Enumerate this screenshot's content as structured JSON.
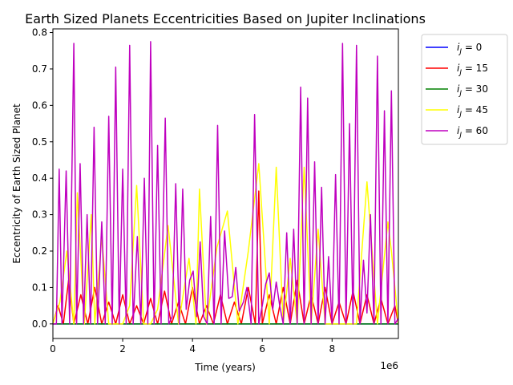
{
  "chart_data": {
    "type": "line",
    "title": "Earth Sized Planets Eccentricities Based on Jupiter Inclinations",
    "xlabel": "Time (years)",
    "ylabel": "Eccentricity of Earth Sized Planet",
    "x_offset_label": "1e6",
    "xlim": [
      0,
      9900000
    ],
    "ylim": [
      -0.04,
      0.81
    ],
    "x_ticks": [
      0,
      2000000,
      4000000,
      6000000,
      8000000
    ],
    "x_tick_labels": [
      "0",
      "2",
      "4",
      "6",
      "8"
    ],
    "y_ticks": [
      0.0,
      0.1,
      0.2,
      0.3,
      0.4,
      0.5,
      0.6,
      0.7,
      0.8
    ],
    "y_tick_labels": [
      "0.0",
      "0.1",
      "0.2",
      "0.3",
      "0.4",
      "0.5",
      "0.6",
      "0.7",
      "0.8"
    ],
    "grid": false,
    "legend_position": "outside-right",
    "series": [
      {
        "name": "$i_J$ = 0",
        "legend_var": "i",
        "legend_sub": "J",
        "legend_rest": " = 0",
        "color": "#0000ff",
        "x": [
          0,
          9900000
        ],
        "y": [
          0.0,
          0.0
        ]
      },
      {
        "name": "$i_J$ = 15",
        "legend_var": "i",
        "legend_sub": "J",
        "legend_rest": " = 15",
        "color": "#ff0000",
        "x": [
          0,
          150000,
          300000,
          450000,
          600000,
          800000,
          1000000,
          1200000,
          1400000,
          1600000,
          1800000,
          2000000,
          2200000,
          2400000,
          2600000,
          2800000,
          3000000,
          3200000,
          3400000,
          3600000,
          3800000,
          4000000,
          4200000,
          4400000,
          4600000,
          4800000,
          5000000,
          5200000,
          5400000,
          5600000,
          5800000,
          5900000,
          6000000,
          6200000,
          6400000,
          6600000,
          6800000,
          7000000,
          7200000,
          7400000,
          7600000,
          7800000,
          8000000,
          8200000,
          8400000,
          8600000,
          8800000,
          9000000,
          9200000,
          9400000,
          9600000,
          9800000,
          9900000
        ],
        "y": [
          0.0,
          0.05,
          0.0,
          0.12,
          0.0,
          0.08,
          0.0,
          0.1,
          0.0,
          0.06,
          0.0,
          0.08,
          0.0,
          0.05,
          0.0,
          0.07,
          0.0,
          0.09,
          0.0,
          0.06,
          0.0,
          0.1,
          0.0,
          0.05,
          0.0,
          0.08,
          0.0,
          0.06,
          0.0,
          0.1,
          0.0,
          0.365,
          0.0,
          0.08,
          0.0,
          0.1,
          0.0,
          0.12,
          0.0,
          0.08,
          0.0,
          0.1,
          0.0,
          0.06,
          0.0,
          0.09,
          0.0,
          0.08,
          0.0,
          0.07,
          0.0,
          0.05,
          0.0
        ]
      },
      {
        "name": "$i_J$ = 30",
        "legend_var": "i",
        "legend_sub": "J",
        "legend_rest": " = 30",
        "color": "#008000",
        "x": [
          0,
          9900000
        ],
        "y": [
          0.0,
          0.0
        ]
      },
      {
        "name": "$i_J$ = 45",
        "legend_var": "i",
        "legend_sub": "J",
        "legend_rest": " = 45",
        "color": "#ffff00",
        "x": [
          0,
          200000,
          400000,
          600000,
          700000,
          900000,
          1100000,
          1200000,
          1400000,
          1600000,
          1800000,
          2000000,
          2200000,
          2400000,
          2600000,
          2800000,
          3000000,
          3300000,
          3600000,
          3900000,
          4100000,
          4200000,
          4400000,
          4700000,
          5000000,
          5300000,
          5600000,
          5900000,
          6200000,
          6400000,
          6600000,
          6800000,
          7000000,
          7200000,
          7400000,
          7600000,
          7800000,
          8100000,
          8400000,
          8700000,
          9000000,
          9300000,
          9600000,
          9700000,
          9900000
        ],
        "y": [
          0.0,
          0.06,
          0.2,
          0.0,
          0.36,
          0.0,
          0.3,
          0.0,
          0.24,
          0.0,
          0.0,
          0.0,
          0.05,
          0.38,
          0.0,
          0.0,
          0.04,
          0.27,
          0.0,
          0.18,
          0.0,
          0.37,
          0.0,
          0.21,
          0.31,
          0.0,
          0.2,
          0.44,
          0.0,
          0.43,
          0.0,
          0.18,
          0.0,
          0.43,
          0.0,
          0.26,
          0.0,
          0.0,
          0.0,
          0.0,
          0.39,
          0.0,
          0.28,
          0.2,
          0.0
        ]
      },
      {
        "name": "$i_J$ = 60",
        "legend_var": "i",
        "legend_sub": "J",
        "legend_rest": " = 60",
        "color": "#bf00bf",
        "x": [
          0,
          100000,
          180000,
          260000,
          380000,
          480000,
          600000,
          680000,
          780000,
          880000,
          980000,
          1080000,
          1180000,
          1280000,
          1400000,
          1500000,
          1600000,
          1700000,
          1800000,
          1900000,
          2000000,
          2100000,
          2200000,
          2300000,
          2420000,
          2520000,
          2620000,
          2720000,
          2800000,
          2900000,
          3000000,
          3100000,
          3220000,
          3320000,
          3420000,
          3520000,
          3620000,
          3720000,
          3820000,
          3920000,
          4020000,
          4120000,
          4220000,
          4320000,
          4420000,
          4520000,
          4620000,
          4720000,
          4820000,
          4920000,
          5040000,
          5140000,
          5240000,
          5340000,
          5460000,
          5560000,
          5680000,
          5780000,
          5900000,
          6000000,
          6100000,
          6200000,
          6300000,
          6400000,
          6500000,
          6600000,
          6700000,
          6800000,
          6900000,
          7000000,
          7100000,
          7200000,
          7300000,
          7400000,
          7500000,
          7600000,
          7700000,
          7800000,
          7900000,
          8000000,
          8100000,
          8200000,
          8300000,
          8400000,
          8500000,
          8600000,
          8700000,
          8800000,
          8900000,
          9000000,
          9100000,
          9200000,
          9300000,
          9400000,
          9500000,
          9600000,
          9700000,
          9800000,
          9900000
        ],
        "y": [
          0.0,
          0.0,
          0.425,
          0.0,
          0.42,
          0.0,
          0.77,
          0.0,
          0.44,
          0.0,
          0.3,
          0.0,
          0.54,
          0.0,
          0.28,
          0.0,
          0.57,
          0.0,
          0.705,
          0.0,
          0.425,
          0.0,
          0.765,
          0.0,
          0.24,
          0.0,
          0.4,
          0.0,
          0.775,
          0.0,
          0.49,
          0.0,
          0.565,
          0.0,
          0.02,
          0.385,
          0.0,
          0.37,
          0.04,
          0.12,
          0.145,
          0.02,
          0.225,
          0.02,
          0.0,
          0.295,
          0.0,
          0.545,
          0.0,
          0.255,
          0.07,
          0.075,
          0.155,
          0.035,
          0.06,
          0.1,
          0.0,
          0.575,
          0.0,
          0.05,
          0.11,
          0.14,
          0.04,
          0.115,
          0.05,
          0.0,
          0.25,
          0.0,
          0.26,
          0.0,
          0.65,
          0.0,
          0.62,
          0.0,
          0.445,
          0.0,
          0.375,
          0.0,
          0.185,
          0.0,
          0.41,
          0.0,
          0.77,
          0.0,
          0.55,
          0.0,
          0.765,
          0.0,
          0.175,
          0.03,
          0.3,
          0.0,
          0.735,
          0.0,
          0.585,
          0.0,
          0.64,
          0.0,
          0.015
        ]
      }
    ]
  }
}
